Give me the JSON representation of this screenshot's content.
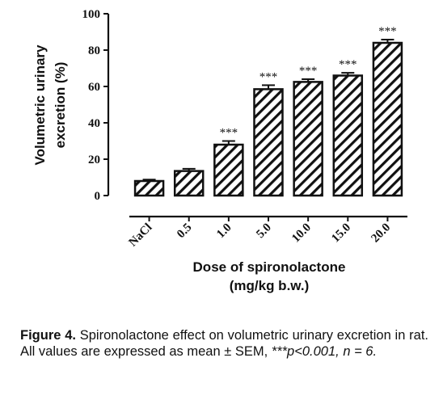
{
  "chart_data": {
    "type": "bar",
    "categories": [
      "NaCl",
      "0.5",
      "1.0",
      "5.0",
      "10.0",
      "15.0",
      "20.0"
    ],
    "values": [
      8,
      13.5,
      28,
      58.5,
      62.5,
      66,
      84
    ],
    "errors": [
      0.8,
      1.2,
      2,
      2.2,
      1.5,
      1.5,
      1.8
    ],
    "significance": [
      "",
      "",
      "***",
      "***",
      "***",
      "***",
      "***"
    ],
    "ylabel_line1": "Volumetric urinary",
    "ylabel_line2": "excretion (%)",
    "xlabel_line1": "Dose of spironolactone",
    "xlabel_line2": "(mg/kg b.w.)",
    "ylim": [
      0,
      100
    ],
    "yticks": [
      "0",
      "20",
      "40",
      "60",
      "80",
      "100"
    ],
    "bar_pattern": "diagonal-hatch"
  },
  "caption": {
    "figure_label": "Figure 4.",
    "text": " Spironolactone effect on volumetric urinary excretion in rat. All values are expressed as mean ± SEM, ",
    "stats": "***p<0.001, n = 6."
  }
}
